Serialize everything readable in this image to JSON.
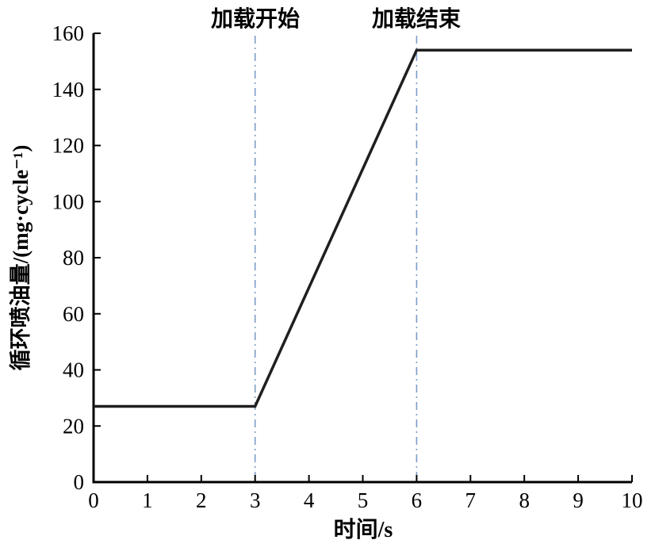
{
  "chart_data": {
    "type": "line",
    "title": "",
    "xlabel": "时间/s",
    "ylabel": "循环喷油量/(mg·cycle⁻¹)",
    "xlim": [
      0,
      10
    ],
    "ylim": [
      0,
      160
    ],
    "xticks": [
      0,
      1,
      2,
      3,
      4,
      5,
      6,
      7,
      8,
      9,
      10
    ],
    "yticks": [
      0,
      20,
      40,
      60,
      80,
      100,
      120,
      140,
      160
    ],
    "grid": false,
    "legend": "none",
    "series": [
      {
        "name": "循环喷油量",
        "points": [
          [
            0,
            27
          ],
          [
            3,
            27
          ],
          [
            6,
            154
          ],
          [
            10,
            154
          ]
        ]
      }
    ],
    "vlines": [
      {
        "x": 3,
        "label": "加载开始"
      },
      {
        "x": 6,
        "label": "加载结束"
      }
    ],
    "colors": {
      "line": "#1f1f1f",
      "vline": "#7d9cc6",
      "axis": "#000000",
      "text": "#000000"
    }
  }
}
